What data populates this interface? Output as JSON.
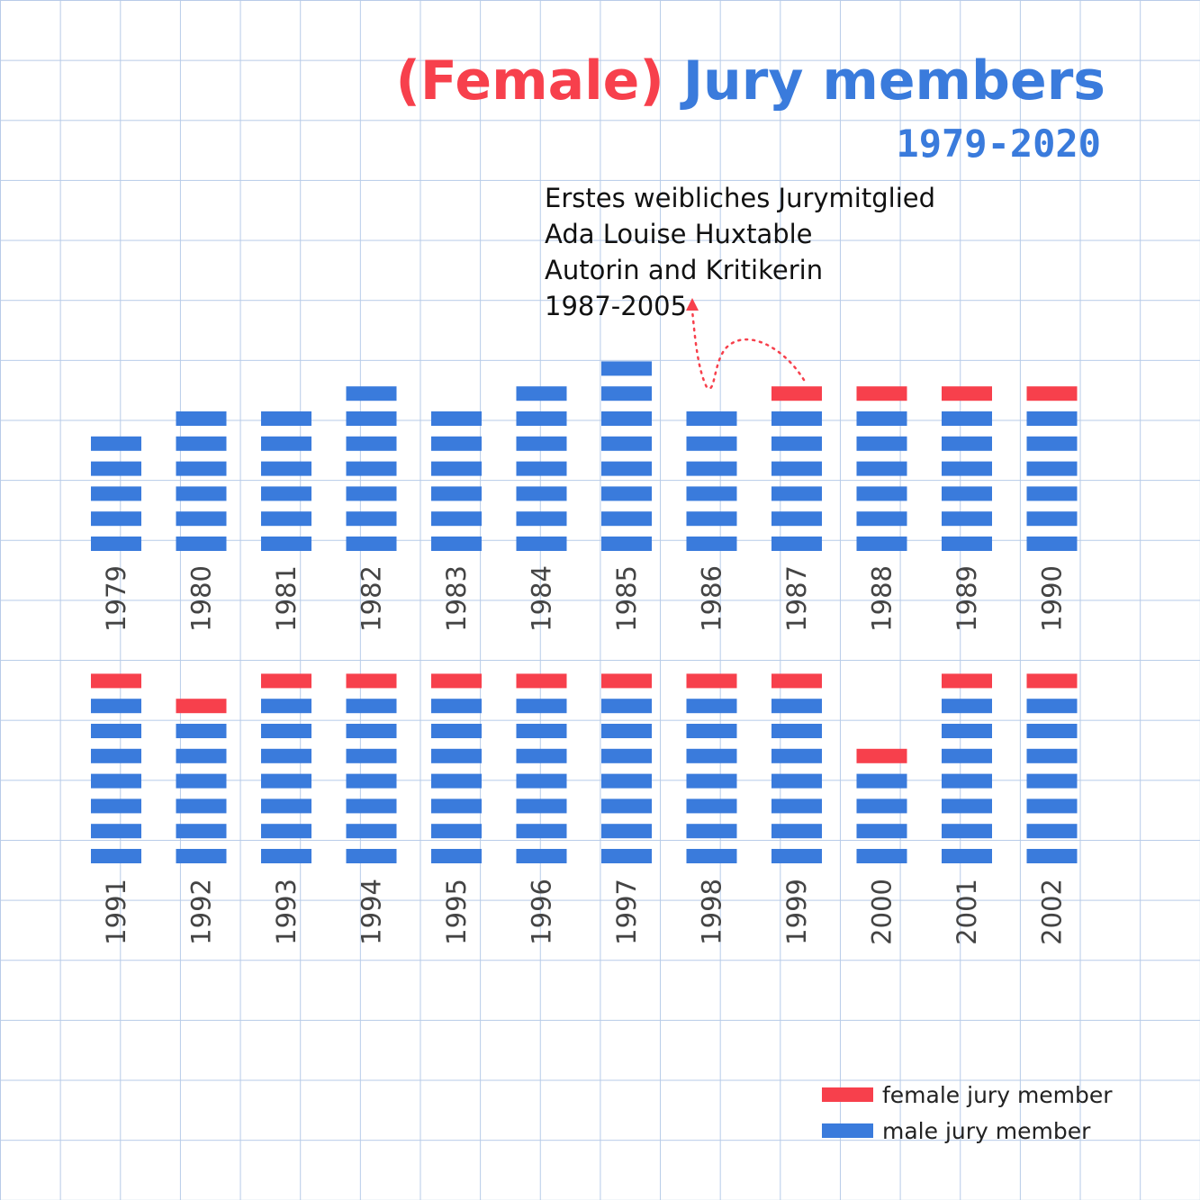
{
  "title": {
    "part1": "(Female)",
    "part2": "Jury members"
  },
  "subtitle": "1979-2020",
  "annotation": {
    "lines": [
      "Erstes weibliches Jurymitglied",
      "Ada Louise Huxtable",
      "Autorin and Kritikerin",
      "1987-2005"
    ]
  },
  "legend": {
    "female_label": "female jury member",
    "male_label": "male jury member"
  },
  "colors": {
    "female": "#f7404c",
    "male": "#3a7bdc",
    "grid": "#b7cbe8",
    "year_label": "#444444"
  },
  "chart_data": {
    "type": "bar",
    "title": "(Female) Jury members 1979-2020",
    "categories": [
      "1979",
      "1980",
      "1981",
      "1982",
      "1983",
      "1984",
      "1985",
      "1986",
      "1987",
      "1988",
      "1989",
      "1990",
      "1991",
      "1992",
      "1993",
      "1994",
      "1995",
      "1996",
      "1997",
      "1998",
      "1999",
      "2000",
      "2001",
      "2002"
    ],
    "series": [
      {
        "name": "male jury member",
        "values": [
          5,
          6,
          6,
          7,
          6,
          7,
          8,
          6,
          6,
          6,
          6,
          6,
          7,
          6,
          7,
          7,
          7,
          7,
          7,
          7,
          7,
          4,
          7,
          7
        ]
      },
      {
        "name": "female jury member",
        "values": [
          0,
          0,
          0,
          0,
          0,
          0,
          0,
          0,
          1,
          1,
          1,
          1,
          1,
          1,
          1,
          1,
          1,
          1,
          1,
          1,
          1,
          1,
          1,
          1
        ]
      }
    ],
    "stacked": true,
    "legend": "bottom-right"
  }
}
